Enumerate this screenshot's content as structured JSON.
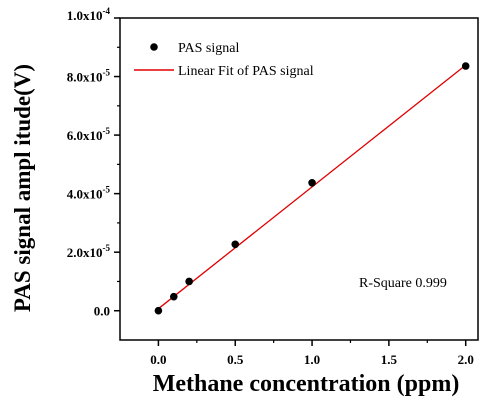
{
  "chart_data": {
    "type": "scatter",
    "xlabel": "Methane concentration (ppm)",
    "ylabel": "PAS signal ampl itude(V)",
    "xlim": [
      -0.25,
      2.08
    ],
    "ylim": [
      -1e-05,
      0.0001
    ],
    "x_ticks": [
      {
        "value": 0.0,
        "label": "0.0"
      },
      {
        "value": 0.5,
        "label": "0.5"
      },
      {
        "value": 1.0,
        "label": "1.0"
      },
      {
        "value": 1.5,
        "label": "1.5"
      },
      {
        "value": 2.0,
        "label": "2.0"
      }
    ],
    "y_ticks": [
      {
        "value": 0.0,
        "mantissa": "0.0",
        "exponent": ""
      },
      {
        "value": 2e-05,
        "mantissa": "2.0x10",
        "exponent": "-5"
      },
      {
        "value": 4e-05,
        "mantissa": "4.0x10",
        "exponent": "-5"
      },
      {
        "value": 6e-05,
        "mantissa": "6.0x10",
        "exponent": "-5"
      },
      {
        "value": 8e-05,
        "mantissa": "8.0x10",
        "exponent": "-5"
      },
      {
        "value": 0.0001,
        "mantissa": "1.0x10",
        "exponent": "-4"
      }
    ],
    "series": [
      {
        "name": "PAS signal",
        "kind": "scatter",
        "color": "#000000",
        "x": [
          0.0,
          0.1,
          0.2,
          0.5,
          1.0,
          2.0
        ],
        "y": [
          0.0,
          4.8e-06,
          1e-05,
          2.27e-05,
          4.37e-05,
          8.36e-05
        ]
      },
      {
        "name": "Linear Fit of PAS signal",
        "kind": "line",
        "color": "#e00000",
        "x": [
          0.0,
          2.0
        ],
        "y": [
          7e-07,
          8.39e-05
        ]
      }
    ],
    "annotation": "R-Square 0.999",
    "legend_position": "top-left",
    "grid": false
  }
}
